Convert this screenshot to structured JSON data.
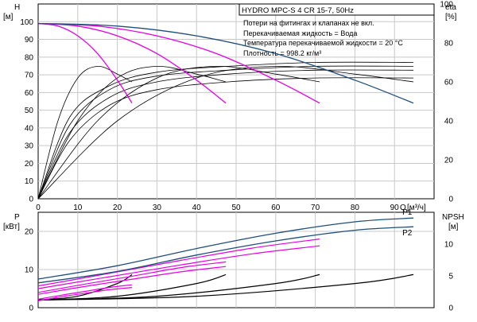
{
  "chart_data": [
    {
      "type": "line",
      "info_box": {
        "title": "HYDRO MPC-S 4 CR 15-7, 50Hz",
        "lines": [
          "Потери на фитингах и клапанах не вкл.",
          "Перекачиваемая жидкость = Вода",
          "Температура перекачиваемой жидкости = 20 °C",
          "Плотность = 998.2 кг/м³"
        ]
      },
      "ylabel_left": "H",
      "ylabel_left_unit": "[м]",
      "ylabel_right": "eta",
      "ylabel_right_unit": "[%]",
      "xlabel": "Q",
      "xlabel_unit": "[м³/ч]",
      "xlim": [
        0,
        100
      ],
      "ylim_left": [
        0,
        110
      ],
      "ylim_right": [
        0,
        100
      ],
      "x_ticks": [
        0,
        10,
        20,
        30,
        40,
        50,
        60,
        70,
        80,
        90
      ],
      "y_ticks_left": [
        0,
        10,
        20,
        30,
        40,
        50,
        60,
        70,
        80,
        90,
        100
      ],
      "y_ticks_right": [
        0,
        20,
        40,
        60,
        80,
        100
      ],
      "grid": true,
      "head_curves": [
        {
          "color": "#e600e6",
          "x": [
            0,
            5,
            10,
            15,
            20,
            23.7
          ],
          "y": [
            99,
            97.5,
            92,
            82,
            67,
            54
          ]
        },
        {
          "color": "#e600e6",
          "x": [
            0,
            10,
            20,
            30,
            40,
            47.4
          ],
          "y": [
            99,
            97.5,
            92,
            82,
            67,
            54
          ]
        },
        {
          "color": "#e600e6",
          "x": [
            0,
            15,
            30,
            45,
            60,
            71.1
          ],
          "y": [
            99,
            97.5,
            92,
            82,
            67,
            54
          ]
        },
        {
          "color": "#1f4e79",
          "x": [
            0,
            20,
            40,
            60,
            80,
            94.8
          ],
          "y": [
            99,
            97.5,
            92,
            82,
            67,
            54
          ]
        }
      ],
      "efficiency_curves": [
        {
          "color": "#000000",
          "x": [
            0,
            5,
            10,
            15,
            20,
            23.7
          ],
          "eta": [
            0,
            40,
            62,
            68,
            64,
            60
          ]
        },
        {
          "color": "#000000",
          "x": [
            0,
            10,
            20,
            30,
            40,
            47.4
          ],
          "eta": [
            0,
            40,
            62,
            68,
            64,
            60
          ]
        },
        {
          "color": "#000000",
          "x": [
            0,
            15,
            30,
            45,
            60,
            71.1
          ],
          "eta": [
            0,
            40,
            62,
            68,
            64,
            60
          ]
        },
        {
          "color": "#000000",
          "x": [
            0,
            20,
            40,
            60,
            80,
            94.8
          ],
          "eta": [
            0,
            40,
            62,
            68,
            64,
            60
          ]
        },
        {
          "color": "#000000",
          "x": [
            0,
            8,
            18,
            30,
            48,
            70,
            94.8
          ],
          "eta": [
            0,
            30,
            48,
            56,
            60,
            62,
            62
          ]
        },
        {
          "color": "#000000",
          "x": [
            0,
            8,
            18,
            30,
            48,
            70,
            94.8
          ],
          "eta": [
            0,
            34,
            52,
            60,
            64,
            66,
            66
          ]
        },
        {
          "color": "#000000",
          "x": [
            0,
            8,
            18,
            30,
            48,
            70,
            94.8
          ],
          "eta": [
            0,
            38,
            56,
            63,
            66,
            68,
            68
          ]
        },
        {
          "color": "#000000",
          "x": [
            0,
            8,
            18,
            30,
            48,
            70,
            94.8
          ],
          "eta": [
            0,
            42,
            58,
            65,
            68,
            70,
            70
          ]
        }
      ]
    },
    {
      "type": "line",
      "ylabel_left": "P",
      "ylabel_left_unit": "[кВт]",
      "ylabel_right": "NPSH",
      "ylabel_right_unit": "[м]",
      "xlim": [
        0,
        100
      ],
      "ylim_left": [
        0,
        25
      ],
      "ylim_right": [
        0,
        15
      ],
      "x_ticks": [
        0,
        10,
        20,
        30,
        40,
        50,
        60,
        70,
        80,
        90
      ],
      "y_ticks_left": [
        0,
        10,
        20
      ],
      "y_ticks_right": [
        0,
        5,
        10
      ],
      "grid": true,
      "labeled_curves": [
        {
          "name": "P1",
          "color": "#1f4e79",
          "x": [
            0,
            20,
            40,
            60,
            80,
            94.8
          ],
          "y": [
            7.5,
            11,
            15.5,
            19.5,
            22.5,
            23.5
          ]
        },
        {
          "name": "P2",
          "color": "#1f4e79",
          "x": [
            0,
            20,
            40,
            60,
            80,
            94.8
          ],
          "y": [
            6.5,
            9.5,
            13.8,
            17.5,
            20.3,
            21.2
          ]
        }
      ],
      "power_curves": [
        {
          "color": "#e600e6",
          "x": [
            0,
            6,
            12,
            18,
            23.7
          ],
          "y": [
            2.2,
            3.3,
            4.3,
            5.3,
            6.0
          ]
        },
        {
          "color": "#e600e6",
          "x": [
            0,
            6,
            12,
            18,
            23.7
          ],
          "y": [
            1.8,
            2.9,
            3.8,
            4.7,
            5.3
          ]
        },
        {
          "color": "#e600e6",
          "x": [
            0,
            12,
            24,
            36,
            47.4
          ],
          "y": [
            4.0,
            6.2,
            8.3,
            10.5,
            12.0
          ]
        },
        {
          "color": "#e600e6",
          "x": [
            0,
            12,
            24,
            36,
            47.4
          ],
          "y": [
            3.5,
            5.6,
            7.5,
            9.4,
            10.8
          ]
        },
        {
          "color": "#e600e6",
          "x": [
            0,
            18,
            36,
            54,
            71.1
          ],
          "y": [
            5.7,
            9.0,
            12.4,
            15.6,
            18.0
          ]
        },
        {
          "color": "#e600e6",
          "x": [
            0,
            18,
            36,
            54,
            71.1
          ],
          "y": [
            5.0,
            8.1,
            11.2,
            14.1,
            16.2
          ]
        }
      ],
      "npsh_curves": [
        {
          "color": "#000000",
          "x": [
            0,
            10,
            20,
            23.7
          ],
          "y": [
            1.2,
            1.8,
            3.8,
            5.2
          ]
        },
        {
          "color": "#000000",
          "x": [
            0,
            20,
            40,
            47.4
          ],
          "y": [
            1.2,
            1.8,
            3.8,
            5.2
          ]
        },
        {
          "color": "#000000",
          "x": [
            0,
            30,
            60,
            71.1
          ],
          "y": [
            1.2,
            1.8,
            3.8,
            5.2
          ]
        },
        {
          "color": "#000000",
          "x": [
            0,
            40,
            80,
            94.8
          ],
          "y": [
            1.2,
            1.8,
            3.8,
            5.2
          ]
        }
      ]
    }
  ]
}
